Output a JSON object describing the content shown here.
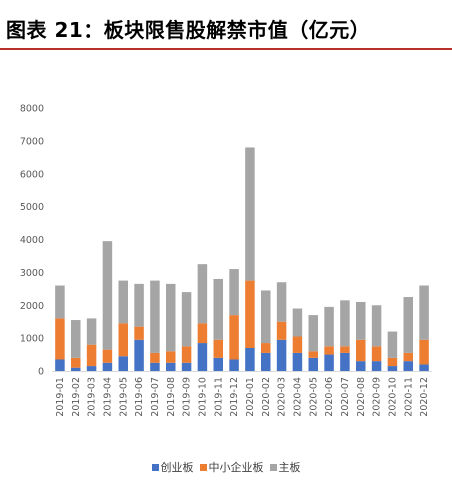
{
  "title": "图表 21：板块限售股解禁市值（亿元）",
  "colors": {
    "rule": "#b8302a",
    "series": [
      "#4472c4",
      "#ed7d31",
      "#a5a5a5"
    ],
    "axis": "#d9d9d9"
  },
  "chart_data": {
    "type": "bar",
    "stacked": true,
    "title": "",
    "xlabel": "",
    "ylabel": "",
    "ylim": [
      0,
      8000
    ],
    "yticks": [
      0,
      1000,
      2000,
      3000,
      4000,
      5000,
      6000,
      7000,
      8000
    ],
    "grid": false,
    "legend_position": "bottom",
    "categories": [
      "2019-01",
      "2019-02",
      "2019-03",
      "2019-04",
      "2019-05",
      "2019-06",
      "2019-07",
      "2019-08",
      "2019-09",
      "2019-10",
      "2019-11",
      "2019-12",
      "2020-01",
      "2020-02",
      "2020-03",
      "2020-04",
      "2020-05",
      "2020-06",
      "2020-07",
      "2020-08",
      "2020-09",
      "2020-10",
      "2020-11",
      "2020-12"
    ],
    "series": [
      {
        "name": "创业板",
        "values": [
          350,
          100,
          150,
          250,
          450,
          950,
          250,
          250,
          250,
          850,
          400,
          350,
          700,
          550,
          950,
          550,
          400,
          500,
          550,
          300,
          300,
          150,
          300,
          200
        ]
      },
      {
        "name": "中小企业板",
        "values": [
          1250,
          300,
          650,
          400,
          1000,
          400,
          300,
          350,
          500,
          600,
          550,
          1350,
          2050,
          300,
          550,
          500,
          200,
          250,
          200,
          650,
          450,
          250,
          250,
          750
        ]
      },
      {
        "name": "主板",
        "values": [
          1000,
          1150,
          800,
          3300,
          1300,
          1300,
          2200,
          2050,
          1650,
          1800,
          1850,
          1400,
          4050,
          1600,
          1200,
          850,
          1100,
          1200,
          1400,
          1150,
          1250,
          800,
          1700,
          1650
        ]
      }
    ]
  }
}
